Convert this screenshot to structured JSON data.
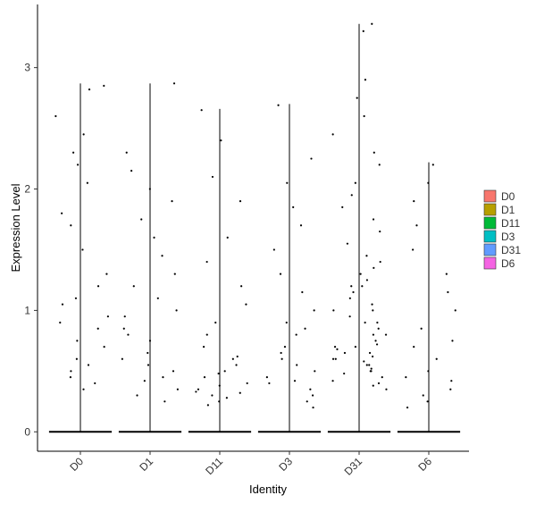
{
  "chart_data": {
    "type": "violin",
    "x_label": "Identity",
    "y_label": "Expression Level",
    "categories": [
      "D0",
      "D1",
      "D11",
      "D3",
      "D31",
      "D6"
    ],
    "colors": [
      "#F8766D",
      "#B79F00",
      "#00BA38",
      "#00BFC4",
      "#619CFF",
      "#F564E3"
    ],
    "max": [
      2.87,
      2.87,
      2.66,
      2.7,
      3.36,
      2.22
    ],
    "points": [
      [
        2.85,
        2.6,
        2.45,
        2.3,
        2.2,
        2.05,
        1.8,
        1.7,
        1.5,
        1.3,
        1.2,
        1.05,
        0.95,
        0.85,
        0.75,
        0.7,
        0.6,
        0.55,
        0.45,
        0.4,
        0.35,
        2.82,
        1.1,
        0.9,
        0.5
      ],
      [
        2.87,
        2.3,
        2.15,
        2.0,
        1.9,
        1.75,
        1.6,
        1.45,
        1.3,
        1.2,
        1.1,
        0.95,
        0.85,
        0.75,
        0.65,
        0.55,
        0.5,
        0.42,
        0.35,
        0.3,
        0.25,
        1.0,
        0.8,
        0.6,
        0.45
      ],
      [
        2.65,
        2.4,
        2.1,
        1.9,
        1.6,
        1.4,
        1.2,
        1.05,
        0.9,
        0.8,
        0.7,
        0.62,
        0.55,
        0.5,
        0.45,
        0.4,
        0.35,
        0.32,
        0.3,
        0.28,
        0.25,
        0.22,
        0.6,
        0.48,
        0.38,
        0.33
      ],
      [
        2.69,
        2.25,
        2.05,
        1.85,
        1.7,
        1.5,
        1.3,
        1.15,
        1.0,
        0.9,
        0.8,
        0.7,
        0.6,
        0.55,
        0.5,
        0.45,
        0.4,
        0.35,
        0.3,
        0.25,
        0.2,
        0.85,
        0.65,
        0.42
      ],
      [
        3.36,
        3.3,
        2.9,
        2.75,
        2.6,
        2.45,
        2.3,
        2.2,
        2.05,
        1.95,
        1.85,
        1.75,
        1.65,
        1.55,
        1.45,
        1.4,
        1.35,
        1.3,
        1.25,
        1.2,
        1.15,
        1.1,
        1.05,
        1.0,
        0.95,
        0.9,
        0.85,
        0.8,
        0.75,
        0.72,
        0.7,
        0.68,
        0.65,
        0.62,
        0.6,
        0.58,
        0.55,
        0.52,
        0.5,
        0.48,
        0.45,
        0.42,
        0.4,
        0.38,
        0.35,
        0.9,
        0.8,
        0.7,
        0.6,
        0.5,
        1.2,
        1.0,
        0.65,
        0.55
      ],
      [
        2.2,
        2.05,
        1.9,
        1.7,
        1.5,
        1.3,
        1.15,
        1.0,
        0.85,
        0.75,
        0.6,
        0.5,
        0.42,
        0.35,
        0.3,
        0.25,
        0.2,
        0.7,
        0.45
      ]
    ],
    "ylim": [
      -0.16,
      3.52
    ],
    "yticks": [
      0,
      1,
      2,
      3
    ]
  }
}
